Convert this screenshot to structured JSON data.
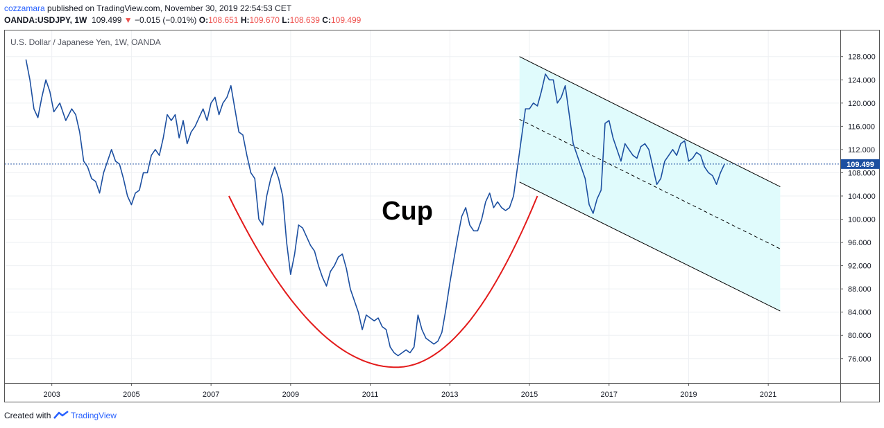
{
  "header": {
    "author": "cozzamara",
    "published_text": "published on TradingView.com, November 30, 2019 22:54:53 CET",
    "symbol": "OANDA:USDJPY, 1W",
    "last": "109.499",
    "change": "−0.015 (−0.01%)",
    "o_label": "O:",
    "o_value": "108.651",
    "h_label": "H:",
    "h_value": "109.670",
    "l_label": "L:",
    "l_value": "108.639",
    "c_label": "C:",
    "c_value": "109.499"
  },
  "footer": {
    "created_with": "Created with",
    "brand": "TradingView"
  },
  "colors": {
    "price_line": "#1c4fa0",
    "cup_curve": "#e31b1b",
    "channel_fill": "#e0fbfc",
    "channel_line": "#000000",
    "price_label_bg": "#1c4fa0"
  },
  "chart_data": {
    "type": "line",
    "title": "U.S. Dollar / Japanese Yen, 1W, OANDA",
    "annotation": "Cup",
    "last_price_label": "109.499",
    "x_ticks": [
      "2003",
      "2005",
      "2007",
      "2009",
      "2011",
      "2013",
      "2015",
      "2017",
      "2019",
      "2021"
    ],
    "y_ticks": [
      "76.000",
      "80.000",
      "84.000",
      "88.000",
      "92.000",
      "96.000",
      "100.000",
      "104.000",
      "108.000",
      "112.000",
      "116.000",
      "120.000",
      "124.000",
      "128.000"
    ],
    "ylim": [
      71.8,
      132.5
    ],
    "xlim": [
      2001.82,
      2022.81
    ],
    "series": [
      {
        "values": [
          [
            2002.35,
            127.5
          ],
          [
            2002.45,
            124
          ],
          [
            2002.55,
            119
          ],
          [
            2002.65,
            117.5
          ],
          [
            2002.75,
            121
          ],
          [
            2002.85,
            124
          ],
          [
            2002.95,
            122
          ],
          [
            2003.05,
            118.5
          ],
          [
            2003.2,
            120
          ],
          [
            2003.35,
            117
          ],
          [
            2003.5,
            119
          ],
          [
            2003.6,
            118
          ],
          [
            2003.7,
            115
          ],
          [
            2003.8,
            110
          ],
          [
            2003.9,
            109
          ],
          [
            2004.0,
            107
          ],
          [
            2004.1,
            106.5
          ],
          [
            2004.2,
            104.5
          ],
          [
            2004.3,
            108
          ],
          [
            2004.4,
            110
          ],
          [
            2004.5,
            112
          ],
          [
            2004.6,
            110
          ],
          [
            2004.7,
            109.5
          ],
          [
            2004.8,
            107
          ],
          [
            2004.9,
            104
          ],
          [
            2005.0,
            102.5
          ],
          [
            2005.1,
            104.5
          ],
          [
            2005.2,
            105
          ],
          [
            2005.3,
            108
          ],
          [
            2005.4,
            108
          ],
          [
            2005.5,
            111
          ],
          [
            2005.6,
            112
          ],
          [
            2005.7,
            111
          ],
          [
            2005.8,
            114
          ],
          [
            2005.9,
            118
          ],
          [
            2006.0,
            117
          ],
          [
            2006.1,
            118
          ],
          [
            2006.2,
            114
          ],
          [
            2006.3,
            117
          ],
          [
            2006.4,
            113
          ],
          [
            2006.5,
            115
          ],
          [
            2006.6,
            116
          ],
          [
            2006.7,
            117.5
          ],
          [
            2006.8,
            119
          ],
          [
            2006.9,
            117
          ],
          [
            2007.0,
            120
          ],
          [
            2007.1,
            121
          ],
          [
            2007.2,
            118
          ],
          [
            2007.3,
            120
          ],
          [
            2007.4,
            121
          ],
          [
            2007.5,
            123
          ],
          [
            2007.6,
            119
          ],
          [
            2007.7,
            115
          ],
          [
            2007.8,
            114.5
          ],
          [
            2007.9,
            111
          ],
          [
            2008.0,
            108
          ],
          [
            2008.1,
            107
          ],
          [
            2008.2,
            100
          ],
          [
            2008.3,
            99
          ],
          [
            2008.4,
            104
          ],
          [
            2008.5,
            107
          ],
          [
            2008.6,
            109
          ],
          [
            2008.7,
            107
          ],
          [
            2008.8,
            104
          ],
          [
            2008.9,
            96
          ],
          [
            2009.0,
            90.5
          ],
          [
            2009.1,
            94
          ],
          [
            2009.2,
            99
          ],
          [
            2009.3,
            98.5
          ],
          [
            2009.4,
            97
          ],
          [
            2009.5,
            95.5
          ],
          [
            2009.6,
            94.5
          ],
          [
            2009.7,
            92
          ],
          [
            2009.8,
            90
          ],
          [
            2009.9,
            88.5
          ],
          [
            2010.0,
            91
          ],
          [
            2010.1,
            92
          ],
          [
            2010.2,
            93.5
          ],
          [
            2010.3,
            94
          ],
          [
            2010.4,
            91.5
          ],
          [
            2010.5,
            88
          ],
          [
            2010.6,
            86
          ],
          [
            2010.7,
            84
          ],
          [
            2010.8,
            81
          ],
          [
            2010.9,
            83.5
          ],
          [
            2011.0,
            83
          ],
          [
            2011.1,
            82.5
          ],
          [
            2011.2,
            83
          ],
          [
            2011.3,
            81.5
          ],
          [
            2011.4,
            81
          ],
          [
            2011.5,
            78
          ],
          [
            2011.6,
            77
          ],
          [
            2011.7,
            76.5
          ],
          [
            2011.8,
            77
          ],
          [
            2011.9,
            77.5
          ],
          [
            2012.0,
            77
          ],
          [
            2012.1,
            78
          ],
          [
            2012.2,
            83.5
          ],
          [
            2012.3,
            81
          ],
          [
            2012.4,
            79.5
          ],
          [
            2012.5,
            79
          ],
          [
            2012.6,
            78.5
          ],
          [
            2012.7,
            79
          ],
          [
            2012.8,
            80.5
          ],
          [
            2012.9,
            84.5
          ],
          [
            2013.0,
            89
          ],
          [
            2013.1,
            93
          ],
          [
            2013.2,
            97
          ],
          [
            2013.3,
            100.5
          ],
          [
            2013.4,
            102
          ],
          [
            2013.5,
            99
          ],
          [
            2013.6,
            98
          ],
          [
            2013.7,
            98
          ],
          [
            2013.8,
            100
          ],
          [
            2013.9,
            103
          ],
          [
            2014.0,
            104.5
          ],
          [
            2014.1,
            102
          ],
          [
            2014.2,
            103
          ],
          [
            2014.3,
            102
          ],
          [
            2014.4,
            101.5
          ],
          [
            2014.5,
            102
          ],
          [
            2014.6,
            104
          ],
          [
            2014.7,
            109
          ],
          [
            2014.8,
            114
          ],
          [
            2014.9,
            119
          ],
          [
            2015.0,
            119
          ],
          [
            2015.1,
            120
          ],
          [
            2015.2,
            119.5
          ],
          [
            2015.3,
            122
          ],
          [
            2015.4,
            125
          ],
          [
            2015.5,
            124
          ],
          [
            2015.6,
            124
          ],
          [
            2015.7,
            120
          ],
          [
            2015.8,
            121
          ],
          [
            2015.9,
            123
          ],
          [
            2016.0,
            118
          ],
          [
            2016.1,
            113
          ],
          [
            2016.2,
            111
          ],
          [
            2016.3,
            109
          ],
          [
            2016.4,
            107
          ],
          [
            2016.5,
            102.5
          ],
          [
            2016.6,
            101
          ],
          [
            2016.7,
            103.5
          ],
          [
            2016.8,
            105
          ],
          [
            2016.9,
            116.5
          ],
          [
            2017.0,
            117
          ],
          [
            2017.1,
            114
          ],
          [
            2017.2,
            112
          ],
          [
            2017.3,
            110
          ],
          [
            2017.4,
            113
          ],
          [
            2017.5,
            112
          ],
          [
            2017.6,
            111
          ],
          [
            2017.7,
            110.5
          ],
          [
            2017.8,
            112.5
          ],
          [
            2017.9,
            113
          ],
          [
            2018.0,
            112
          ],
          [
            2018.1,
            109
          ],
          [
            2018.2,
            106
          ],
          [
            2018.3,
            107
          ],
          [
            2018.4,
            110
          ],
          [
            2018.5,
            111
          ],
          [
            2018.6,
            112
          ],
          [
            2018.7,
            111
          ],
          [
            2018.8,
            113
          ],
          [
            2018.9,
            113.5
          ],
          [
            2019.0,
            110
          ],
          [
            2019.1,
            110.5
          ],
          [
            2019.2,
            111.5
          ],
          [
            2019.3,
            111
          ],
          [
            2019.4,
            109
          ],
          [
            2019.5,
            108
          ],
          [
            2019.6,
            107.5
          ],
          [
            2019.7,
            106
          ],
          [
            2019.8,
            108
          ],
          [
            2019.9,
            109.5
          ]
        ]
      }
    ],
    "channel": {
      "x_start": 2014.75,
      "x_end": 2021.3,
      "upper": [
        128.0,
        105.6
      ],
      "middle": [
        117.2,
        94.9
      ],
      "lower": [
        106.4,
        84.2
      ]
    },
    "cup_curve": {
      "x_start": 2007.45,
      "x_bottom": 2011.65,
      "x_end": 2015.2,
      "y_start": 104.0,
      "y_bottom": 74.5,
      "y_end": 104.0
    }
  }
}
